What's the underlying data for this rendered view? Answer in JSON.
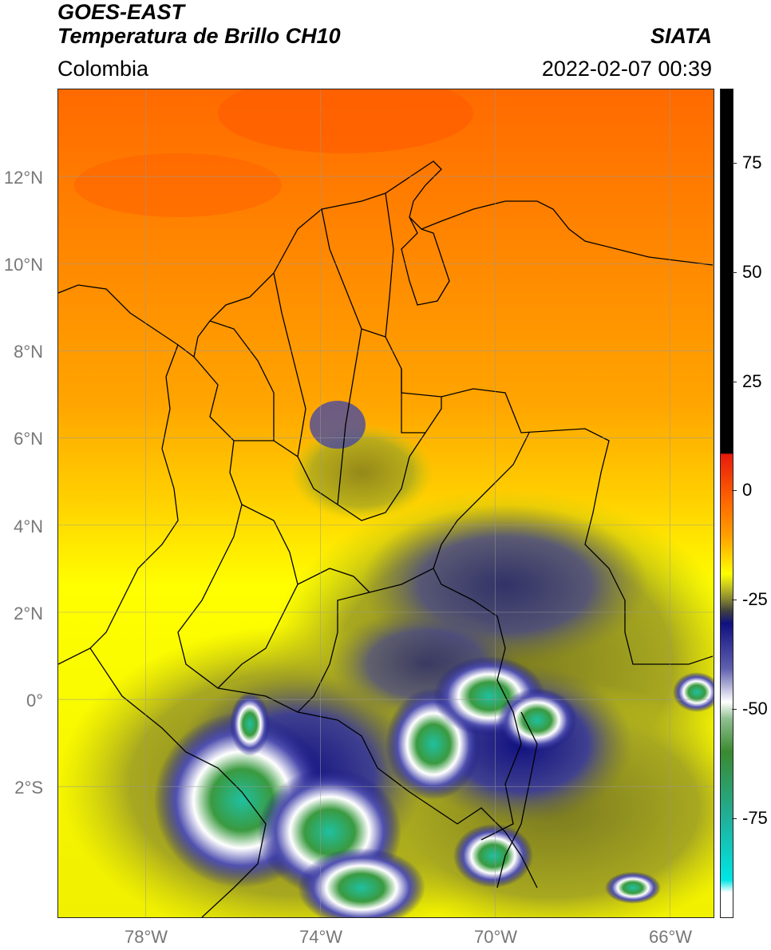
{
  "header": {
    "title_line1": "GOES-EAST",
    "title_line2": "Temperatura de Brillo CH10",
    "subtitle": "Colombia",
    "agency": "SIATA",
    "datetime": "2022-02-07 00:39"
  },
  "map": {
    "lat_labels": [
      "12°N",
      "10°N",
      "8°N",
      "6°N",
      "4°N",
      "2°N",
      "0°",
      "2°S"
    ],
    "lon_labels": [
      "78°W",
      "74°W",
      "70°W",
      "66°W"
    ],
    "extent": {
      "lon_min": -80.0,
      "lon_max": -65.0,
      "lat_min": -5.0,
      "lat_max": 14.0
    }
  },
  "colorbar": {
    "ticks": [
      "75",
      "50",
      "25",
      "0",
      "-25",
      "-50",
      "-75"
    ],
    "units": "",
    "range": [
      -100,
      90
    ],
    "colors": {
      "black": "#000000",
      "red": "#e81a0c",
      "orange": "#ff8c00",
      "yellow": "#ffff00",
      "olive": "#8a8a20",
      "navy": "#101080",
      "white": "#ffffff",
      "green": "#3a8a30",
      "teal": "#20c0a0",
      "cyan": "#00e0e0"
    }
  }
}
